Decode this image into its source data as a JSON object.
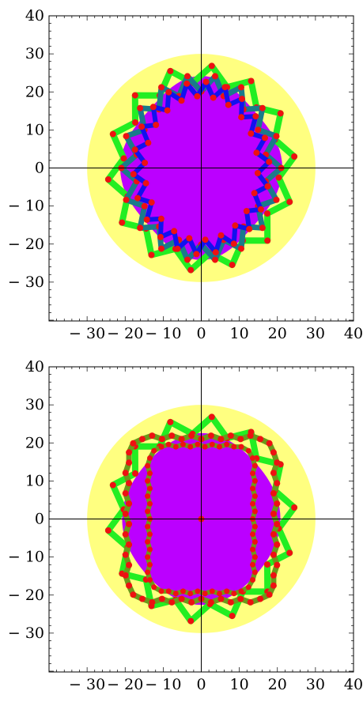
{
  "axes": {
    "x_ticks": [
      -30,
      -20,
      -10,
      0,
      10,
      20,
      30,
      40
    ],
    "y_ticks": [
      40,
      30,
      20,
      10,
      0,
      -10,
      -20,
      -30
    ],
    "x_labels": [
      "− 30",
      "− 20",
      "− 10",
      "0",
      "10",
      "20",
      "30",
      "40"
    ],
    "y_labels": [
      "40",
      "30",
      "20",
      "10",
      "0",
      "− 10",
      "− 20",
      "− 30"
    ],
    "xlim": [
      -40,
      40
    ],
    "ylim": [
      -40,
      40
    ]
  },
  "colors": {
    "disk": "#ffff80",
    "region": "#bb00ff",
    "outer_chain": "#22ee22",
    "middle_chain_top": "#1a7a8a",
    "inner_chain_top": "#1111ee",
    "middle_chain_bottom": "#6a9a1a",
    "nodes": "#ee1111"
  },
  "panels": [
    {
      "name": "top",
      "disk_radius": 30
    },
    {
      "name": "bottom",
      "disk_radius": 30
    }
  ]
}
